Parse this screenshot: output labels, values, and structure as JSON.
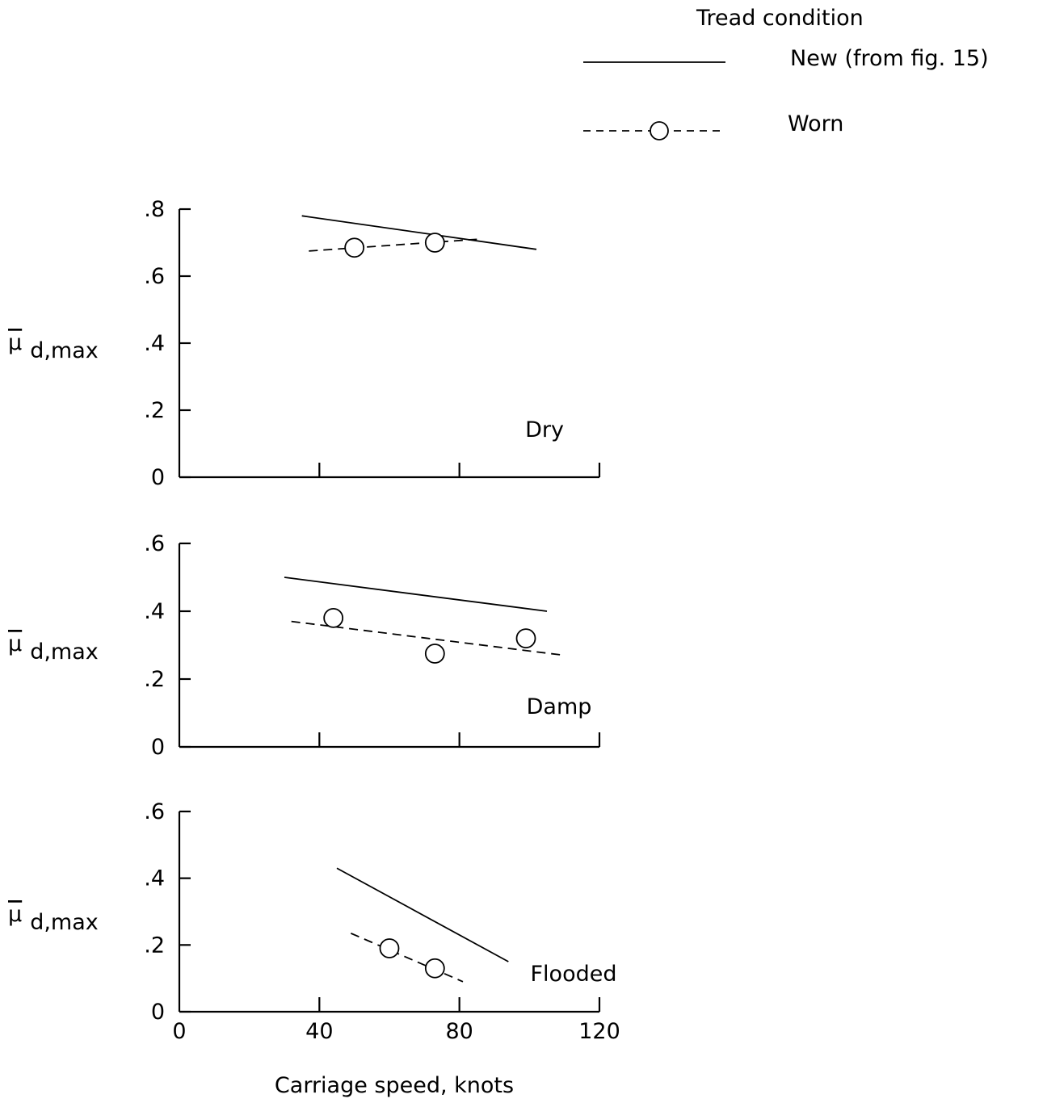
{
  "legend": {
    "title": "Tread condition",
    "entries": [
      {
        "label": "New (from fig. 15)",
        "style": "solid"
      },
      {
        "label": "Worn",
        "style": "dashed-circle"
      }
    ]
  },
  "ylabel": "μ",
  "ylabel_subscript": "d,max",
  "xlabel": "Carriage speed, knots",
  "colors": {
    "ink": "#000000",
    "background": "#ffffff"
  },
  "chart_data": [
    {
      "type": "line",
      "panel_label": "Dry",
      "xlim": [
        0,
        120
      ],
      "ylim": [
        0,
        0.8
      ],
      "xticks": [
        0,
        40,
        80,
        120
      ],
      "yticks": [
        0,
        0.2,
        0.4,
        0.6,
        0.8
      ],
      "ytick_labels": [
        "0",
        ".2",
        ".4",
        ".6",
        ".8"
      ],
      "x_tick_labels_shown": false,
      "series": [
        {
          "name": "New (from fig. 15)",
          "style": "solid",
          "line": [
            [
              35,
              0.78
            ],
            [
              102,
              0.68
            ]
          ]
        },
        {
          "name": "Worn",
          "style": "dashed",
          "line": [
            [
              37,
              0.675
            ],
            [
              85,
              0.71
            ]
          ],
          "points": [
            [
              50,
              0.685
            ],
            [
              73,
              0.7
            ]
          ]
        }
      ]
    },
    {
      "type": "line",
      "panel_label": "Damp",
      "xlim": [
        0,
        120
      ],
      "ylim": [
        0,
        0.6
      ],
      "xticks": [
        0,
        40,
        80,
        120
      ],
      "yticks": [
        0,
        0.2,
        0.4,
        0.6
      ],
      "ytick_labels": [
        "0",
        ".2",
        ".4",
        ".6"
      ],
      "x_tick_labels_shown": false,
      "series": [
        {
          "name": "New (from fig. 15)",
          "style": "solid",
          "line": [
            [
              30,
              0.5
            ],
            [
              105,
              0.4
            ]
          ]
        },
        {
          "name": "Worn",
          "style": "dashed",
          "line": [
            [
              32,
              0.37
            ],
            [
              110,
              0.27
            ]
          ],
          "points": [
            [
              44,
              0.38
            ],
            [
              73,
              0.275
            ],
            [
              99,
              0.32
            ]
          ]
        }
      ]
    },
    {
      "type": "line",
      "panel_label": "Flooded",
      "xlim": [
        0,
        120
      ],
      "ylim": [
        0,
        0.6
      ],
      "xticks": [
        0,
        40,
        80,
        120
      ],
      "yticks": [
        0,
        0.2,
        0.4,
        0.6
      ],
      "ytick_labels": [
        "0",
        ".2",
        ".4",
        ".6"
      ],
      "xtick_labels": [
        "0",
        "40",
        "80",
        "120"
      ],
      "x_tick_labels_shown": true,
      "series": [
        {
          "name": "New (from fig. 15)",
          "style": "solid",
          "line": [
            [
              45,
              0.43
            ],
            [
              94,
              0.15
            ]
          ]
        },
        {
          "name": "Worn",
          "style": "dashed",
          "line": [
            [
              49,
              0.235
            ],
            [
              81,
              0.09
            ]
          ],
          "points": [
            [
              60,
              0.19
            ],
            [
              73,
              0.13
            ]
          ]
        }
      ]
    }
  ]
}
